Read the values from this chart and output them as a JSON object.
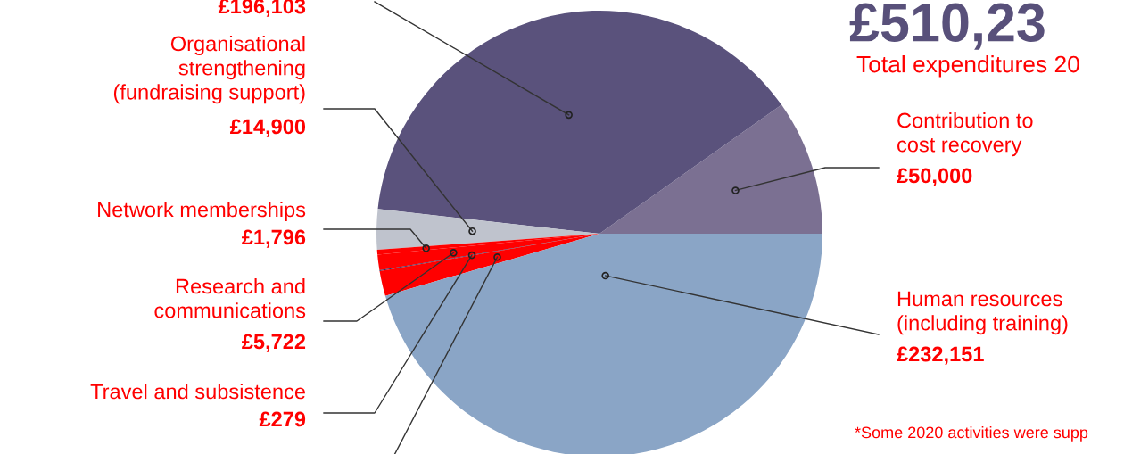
{
  "chart_data": {
    "type": "pie",
    "title": "£510,23",
    "subtitle": "Total expenditures 20",
    "categories": [
      "Contribution to\ncost recovery",
      null,
      "Organisational\nstrengthening\n(fundraising support)",
      "Network memberships",
      "Research and\ncommunications",
      "Travel and subsistence",
      null,
      "Human resources\n(including training)"
    ],
    "values": [
      50000,
      196103,
      14900,
      1796,
      5722,
      279,
      9280,
      232151
    ],
    "colors": [
      "#7b7092",
      "#5a527c",
      "#bfc3cd",
      "#ff0000",
      "#ff0000",
      "#26275e",
      "#ff0000",
      "#8aa5c6"
    ],
    "value_labels": [
      "£50,000",
      "£196,103",
      "£14,900",
      "£1,796",
      "£5,722",
      "£279",
      null,
      "£232,151"
    ],
    "annotations": [
      "*Some 2020 activities were supp"
    ]
  }
}
